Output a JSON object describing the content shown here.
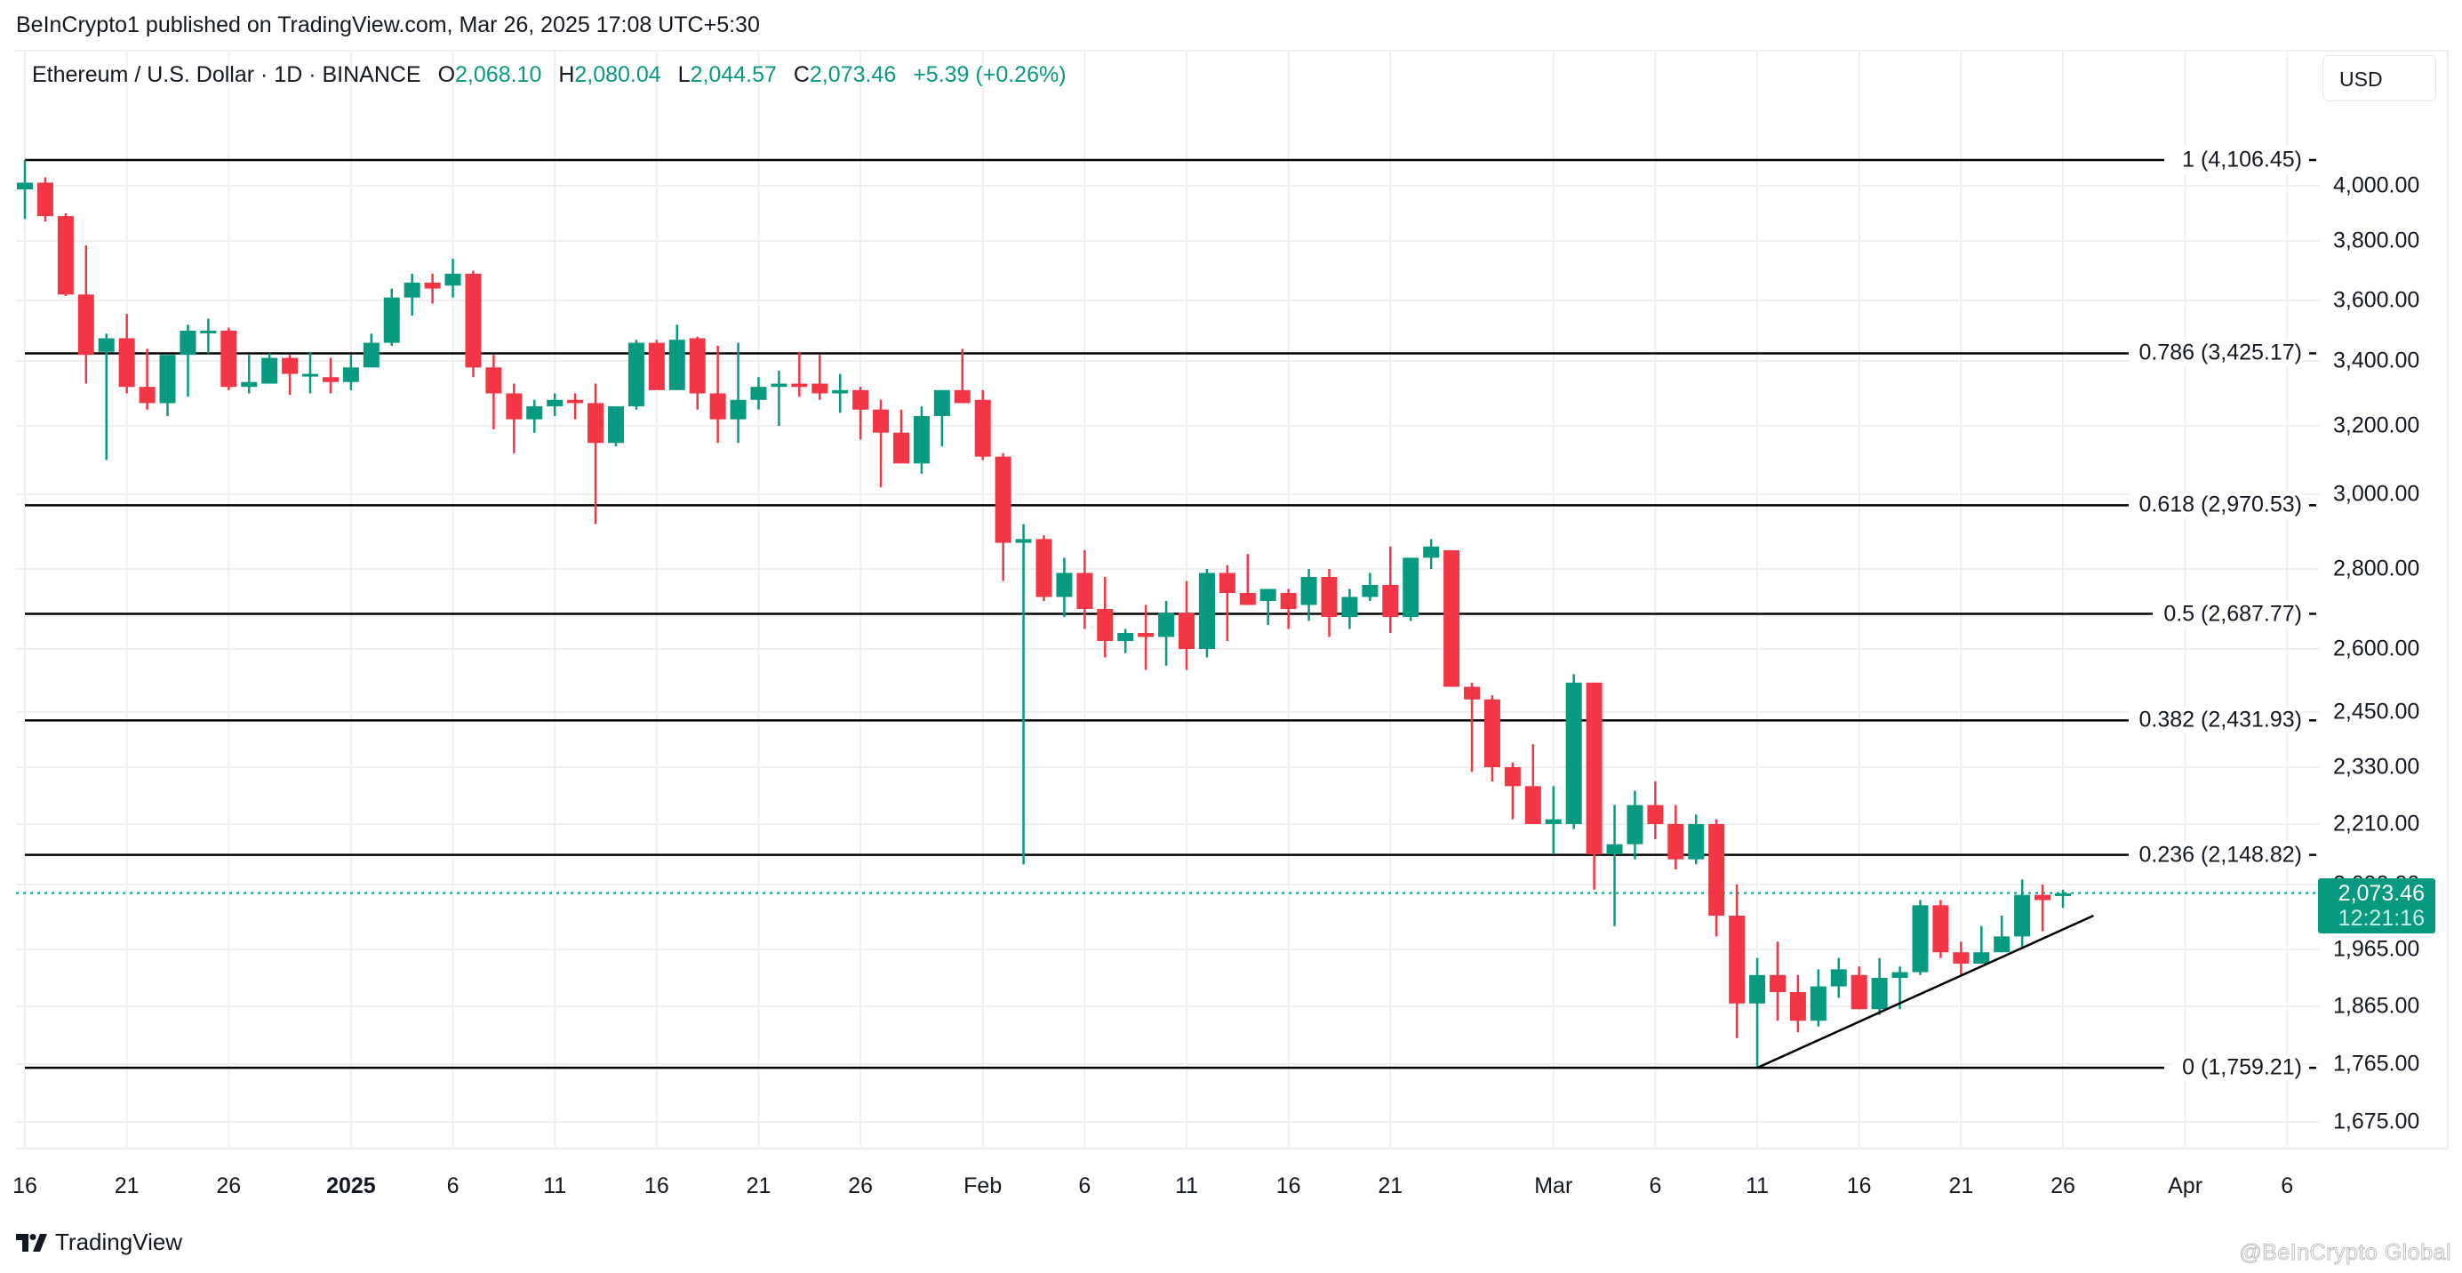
{
  "header": {
    "published": "BeInCrypto1 published on TradingView.com, Mar 26, 2025 17:08 UTC+5:30"
  },
  "legend": {
    "symbol": "Ethereum / U.S. Dollar · 1D · BINANCE",
    "open_label": "O",
    "open": "2,068.10",
    "high_label": "H",
    "high": "2,080.04",
    "low_label": "L",
    "low": "2,044.57",
    "close_label": "C",
    "close": "2,073.46",
    "change": "+5.39 (+0.26%)"
  },
  "currency_button": "USD",
  "price_badge": {
    "price": "2,073.46",
    "timer": "12:21:16"
  },
  "footer": {
    "logo_text": "TradingView",
    "watermark": "@BeInCrypto Global"
  },
  "colors": {
    "up": "#089981",
    "down": "#f23645",
    "grid": "#f0f0f0",
    "fib_line": "#000000"
  },
  "chart_data": {
    "type": "candlestick",
    "title": "Ethereum / U.S. Dollar · 1D · BINANCE",
    "xlabel": "",
    "ylabel": "USD",
    "ylim": [
      1620,
      4180
    ],
    "y_ticks": [
      "4,000.00",
      "3,800.00",
      "3,600.00",
      "3,400.00",
      "3,200.00",
      "3,000.00",
      "2,800.00",
      "2,600.00",
      "2,450.00",
      "2,330.00",
      "2,210.00",
      "2,090.00",
      "1,965.00",
      "1,865.00",
      "1,765.00",
      "1,675.00"
    ],
    "y_tick_values": [
      4000,
      3800,
      3600,
      3400,
      3200,
      3000,
      2800,
      2600,
      2450,
      2330,
      2210,
      2090,
      1965,
      1865,
      1765,
      1675
    ],
    "x_ticks": [
      {
        "label": "16",
        "day": 0
      },
      {
        "label": "21",
        "day": 5
      },
      {
        "label": "26",
        "day": 10
      },
      {
        "label": "2025",
        "day": 16,
        "bold": true
      },
      {
        "label": "6",
        "day": 21
      },
      {
        "label": "11",
        "day": 26
      },
      {
        "label": "16",
        "day": 31
      },
      {
        "label": "21",
        "day": 36
      },
      {
        "label": "26",
        "day": 41
      },
      {
        "label": "Feb",
        "day": 47
      },
      {
        "label": "6",
        "day": 52
      },
      {
        "label": "11",
        "day": 57
      },
      {
        "label": "16",
        "day": 62
      },
      {
        "label": "21",
        "day": 67
      },
      {
        "label": "Mar",
        "day": 75
      },
      {
        "label": "6",
        "day": 80
      },
      {
        "label": "11",
        "day": 85
      },
      {
        "label": "16",
        "day": 90
      },
      {
        "label": "21",
        "day": 95
      },
      {
        "label": "26",
        "day": 100
      },
      {
        "label": "Apr",
        "day": 106
      },
      {
        "label": "6",
        "day": 111
      }
    ],
    "fib_levels": [
      {
        "label": "1 (4,106.45)",
        "value": 4106.45
      },
      {
        "label": "0.786 (3,425.17)",
        "value": 3425.17
      },
      {
        "label": "0.618 (2,970.53)",
        "value": 2970.53
      },
      {
        "label": "0.5 (2,687.77)",
        "value": 2687.77
      },
      {
        "label": "0.382 (2,431.93)",
        "value": 2431.93
      },
      {
        "label": "0.236 (2,148.82)",
        "value": 2148.82
      },
      {
        "label": "0 (1,759.21)",
        "value": 1759.21
      }
    ],
    "trendline": {
      "from": {
        "day": 85,
        "value": 1759.21
      },
      "to": {
        "day": 101.5,
        "value": 2030
      }
    },
    "last_price": 2073.46,
    "candles": [
      [
        3987,
        4107,
        3880,
        4013
      ],
      [
        4013,
        4035,
        3870,
        3890
      ],
      [
        3890,
        3900,
        3615,
        3620
      ],
      [
        3620,
        3785,
        3330,
        3420
      ],
      [
        3430,
        3490,
        3100,
        3475
      ],
      [
        3475,
        3555,
        3300,
        3320
      ],
      [
        3320,
        3440,
        3250,
        3270
      ],
      [
        3270,
        3360,
        3230,
        3420
      ],
      [
        3420,
        3520,
        3290,
        3500
      ],
      [
        3500,
        3540,
        3425,
        3500
      ],
      [
        3500,
        3510,
        3310,
        3320
      ],
      [
        3320,
        3420,
        3300,
        3335
      ],
      [
        3330,
        3425,
        3330,
        3410
      ],
      [
        3410,
        3420,
        3295,
        3360
      ],
      [
        3360,
        3430,
        3300,
        3360
      ],
      [
        3350,
        3410,
        3300,
        3335
      ],
      [
        3335,
        3420,
        3310,
        3380
      ],
      [
        3380,
        3490,
        3380,
        3460
      ],
      [
        3460,
        3640,
        3450,
        3610
      ],
      [
        3610,
        3690,
        3550,
        3660
      ],
      [
        3660,
        3690,
        3590,
        3640
      ],
      [
        3650,
        3740,
        3610,
        3690
      ],
      [
        3690,
        3700,
        3350,
        3380
      ],
      [
        3380,
        3420,
        3190,
        3300
      ],
      [
        3300,
        3330,
        3120,
        3220
      ],
      [
        3220,
        3280,
        3180,
        3260
      ],
      [
        3260,
        3300,
        3230,
        3280
      ],
      [
        3280,
        3300,
        3220,
        3270
      ],
      [
        3270,
        3330,
        2920,
        3150
      ],
      [
        3150,
        3260,
        3140,
        3260
      ],
      [
        3260,
        3470,
        3250,
        3460
      ],
      [
        3460,
        3470,
        3330,
        3310
      ],
      [
        3310,
        3520,
        3320,
        3470
      ],
      [
        3475,
        3480,
        3250,
        3300
      ],
      [
        3300,
        3450,
        3150,
        3220
      ],
      [
        3220,
        3460,
        3150,
        3280
      ],
      [
        3280,
        3350,
        3250,
        3320
      ],
      [
        3320,
        3370,
        3200,
        3330
      ],
      [
        3330,
        3430,
        3290,
        3320
      ],
      [
        3330,
        3420,
        3280,
        3300
      ],
      [
        3300,
        3360,
        3240,
        3310
      ],
      [
        3310,
        3320,
        3160,
        3250
      ],
      [
        3250,
        3280,
        3020,
        3180
      ],
      [
        3180,
        3250,
        3100,
        3090
      ],
      [
        3090,
        3260,
        3060,
        3230
      ],
      [
        3230,
        3260,
        3140,
        3310
      ],
      [
        3310,
        3440,
        3290,
        3270
      ],
      [
        3280,
        3310,
        3100,
        3110
      ],
      [
        3110,
        3120,
        2770,
        2870
      ],
      [
        2870,
        2920,
        2130,
        2880
      ],
      [
        2880,
        2890,
        2720,
        2730
      ],
      [
        2730,
        2830,
        2680,
        2790
      ],
      [
        2790,
        2850,
        2650,
        2700
      ],
      [
        2700,
        2780,
        2580,
        2620
      ],
      [
        2620,
        2650,
        2590,
        2640
      ],
      [
        2640,
        2710,
        2550,
        2630
      ],
      [
        2630,
        2720,
        2560,
        2690
      ],
      [
        2690,
        2770,
        2550,
        2600
      ],
      [
        2600,
        2800,
        2580,
        2790
      ],
      [
        2790,
        2810,
        2620,
        2740
      ],
      [
        2740,
        2840,
        2710,
        2710
      ],
      [
        2720,
        2750,
        2660,
        2750
      ],
      [
        2740,
        2750,
        2650,
        2700
      ],
      [
        2710,
        2800,
        2670,
        2780
      ],
      [
        2780,
        2800,
        2630,
        2680
      ],
      [
        2680,
        2750,
        2650,
        2730
      ],
      [
        2730,
        2790,
        2720,
        2760
      ],
      [
        2760,
        2860,
        2640,
        2680
      ],
      [
        2680,
        2820,
        2670,
        2830
      ],
      [
        2830,
        2880,
        2800,
        2860
      ],
      [
        2850,
        2840,
        2560,
        2510
      ],
      [
        2510,
        2520,
        2320,
        2480
      ],
      [
        2480,
        2490,
        2300,
        2330
      ],
      [
        2330,
        2340,
        2220,
        2290
      ],
      [
        2290,
        2380,
        2290,
        2210
      ],
      [
        2210,
        2290,
        2150,
        2220
      ],
      [
        2210,
        2540,
        2200,
        2520
      ],
      [
        2520,
        2520,
        2080,
        2150
      ],
      [
        2150,
        2250,
        2010,
        2170
      ],
      [
        2170,
        2280,
        2140,
        2250
      ],
      [
        2250,
        2300,
        2180,
        2210
      ],
      [
        2210,
        2250,
        2120,
        2140
      ],
      [
        2140,
        2230,
        2130,
        2210
      ],
      [
        2210,
        2220,
        1990,
        2030
      ],
      [
        2030,
        2090,
        1810,
        1870
      ],
      [
        1870,
        1950,
        1760,
        1920
      ],
      [
        1920,
        1980,
        1840,
        1890
      ],
      [
        1890,
        1920,
        1820,
        1840
      ],
      [
        1840,
        1930,
        1830,
        1900
      ],
      [
        1900,
        1950,
        1880,
        1930
      ],
      [
        1920,
        1935,
        1860,
        1860
      ],
      [
        1860,
        1950,
        1850,
        1915
      ],
      [
        1915,
        1935,
        1860,
        1925
      ],
      [
        1925,
        2060,
        1920,
        2050
      ],
      [
        2050,
        2060,
        1950,
        1960
      ],
      [
        1960,
        1980,
        1920,
        1940
      ],
      [
        1940,
        2010,
        1940,
        1960
      ],
      [
        1960,
        2030,
        1960,
        1990
      ],
      [
        1990,
        2100,
        1970,
        2070
      ],
      [
        2070,
        2090,
        2000,
        2060
      ],
      [
        2068,
        2080,
        2045,
        2073
      ]
    ]
  }
}
